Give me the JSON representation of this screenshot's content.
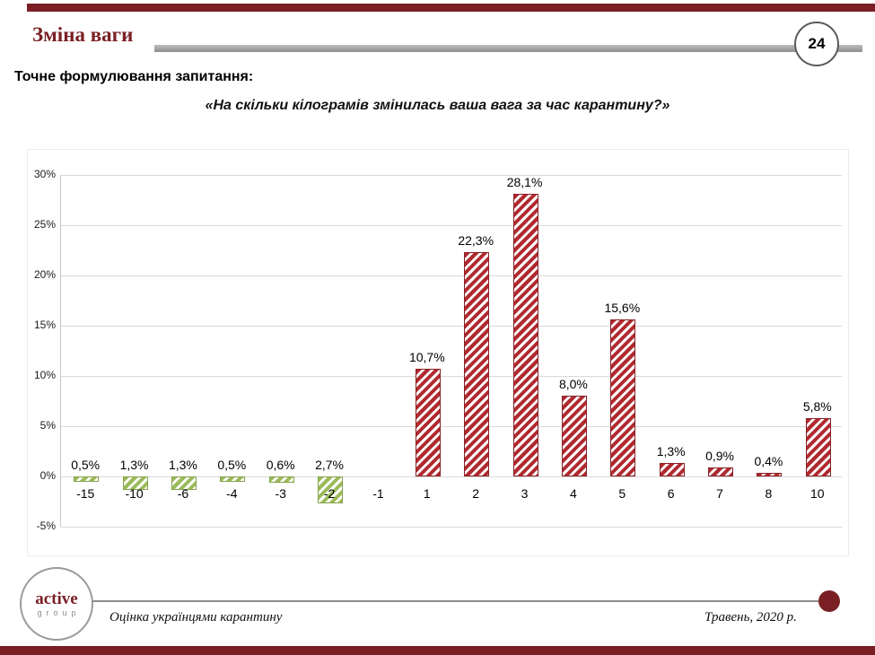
{
  "slide": {
    "page_number": "24",
    "title": "Зміна ваги",
    "question_label": "Точне формулювання запитання:",
    "question_text": "«На скільки кілограмів змінилась ваша вага за час карантину?»",
    "footer": {
      "left_text": "Оцінка українцями карантину",
      "right_text": "Травень, 2020 р."
    },
    "logo": {
      "line1": "active",
      "line2": "group"
    },
    "accent_color": "#7a2025"
  },
  "chart_data": {
    "type": "bar",
    "title": "",
    "categories": [
      "-15",
      "-10",
      "-6",
      "-4",
      "-3",
      "-2",
      "-1",
      "1",
      "2",
      "3",
      "4",
      "5",
      "6",
      "7",
      "8",
      "10"
    ],
    "values": [
      -0.5,
      -1.3,
      -1.3,
      -0.5,
      -0.6,
      -2.7,
      0,
      10.7,
      22.3,
      28.1,
      8.0,
      15.6,
      1.3,
      0.9,
      0.4,
      5.8
    ],
    "data_labels": [
      "0,5%",
      "1,3%",
      "1,3%",
      "0,5%",
      "0,6%",
      "2,7%",
      "",
      "10,7%",
      "22,3%",
      "28,1%",
      "8,0%",
      "15,6%",
      "1,3%",
      "0,9%",
      "0,4%",
      "5,8%"
    ],
    "xlabel": "",
    "ylabel": "",
    "ylim": [
      -5,
      30
    ],
    "ytick_step": 5,
    "ytick_labels": [
      "30%",
      "25%",
      "20%",
      "15%",
      "10%",
      "5%",
      "0%",
      "-5%"
    ],
    "grid": true,
    "legend": "none",
    "colors": {
      "positive_bar": "#b02a30",
      "positive_border": "#8a1f24",
      "negative_bar": "#9bbb59",
      "negative_border": "#84a24a"
    },
    "hatch": "diagonal-stripes"
  }
}
